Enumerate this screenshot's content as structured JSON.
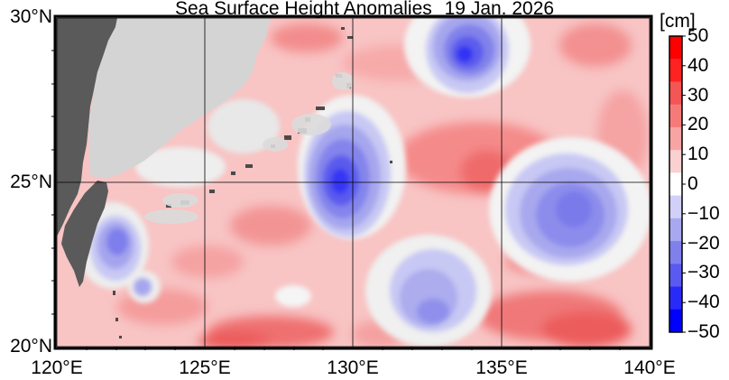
{
  "title": {
    "main": "Sea Surface Height Anomalies",
    "date": "19 Jan. 2026"
  },
  "map": {
    "region": "Western North Pacific",
    "lat_range": [
      20,
      30
    ],
    "lon_range": [
      120,
      140
    ],
    "latitude_labels": [
      "30°N",
      "25°N",
      "20°N"
    ],
    "longitude_labels": [
      "120°E",
      "125°E",
      "130°E",
      "135°E",
      "140°E"
    ],
    "features": {
      "land": "Taiwan and China coast (dark gray)",
      "negative_eddies": [
        "near 134°E 29°N",
        "near 129.8°E 25°N",
        "near 137°E 24°N",
        "near 132.5°E 22°N",
        "near 122°E 23°N"
      ]
    }
  },
  "colorbar": {
    "unit": "[cm]",
    "ticks": [
      "50",
      "40",
      "30",
      "20",
      "10",
      "0",
      "−10",
      "−20",
      "−30",
      "−40",
      "−50"
    ],
    "colors": [
      "#ff0000",
      "#ff2222",
      "#f45555",
      "#f77a7a",
      "#f9a4a4",
      "#fbd0d0",
      "#ffffff",
      "#d0d0f8",
      "#a8a8f0",
      "#8080ec",
      "#5a5af0",
      "#2a2af8",
      "#0000ff"
    ]
  },
  "palette": {
    "ocean_neutral": "#eeeeee",
    "land_dark": "#5a5a5a",
    "land_light": "#d4d4d4"
  }
}
